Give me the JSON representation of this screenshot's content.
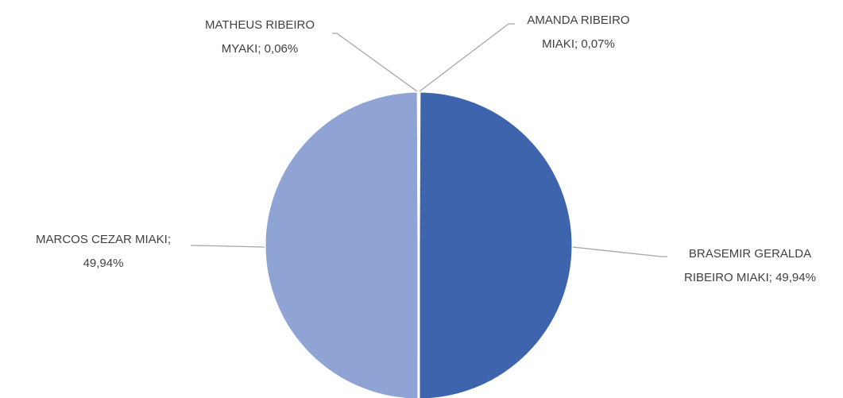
{
  "chart_data": {
    "type": "pie",
    "values": [
      0.07,
      49.94,
      49.94,
      0.06
    ],
    "value_labels": [
      "AMANDA RIBEIRO MIAKI; 0,07%",
      "BRASEMIR GERALDA RIBEIRO MIAKI; 49,94%",
      "MARCOS CEZAR MIAKI; 49,94%",
      "MATHEUS RIBEIRO MYAKI; 0,06%"
    ],
    "colors": [
      "#2f4f8f",
      "#3e64ad",
      "#8fa3d4",
      "#b4c2e3"
    ]
  }
}
